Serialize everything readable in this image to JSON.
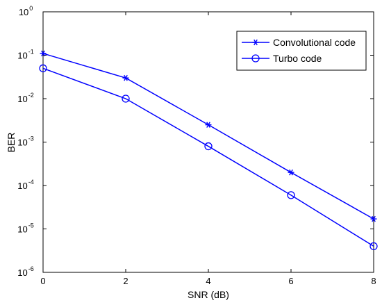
{
  "chart_data": {
    "type": "line",
    "xlabel": "SNR (dB)",
    "ylabel": "BER",
    "x_scale": "linear",
    "y_scale": "log",
    "xlim": [
      0,
      8
    ],
    "ylim": [
      1e-06,
      1
    ],
    "x_ticks": [
      "0",
      "2",
      "4",
      "6",
      "8"
    ],
    "y_ticks": [
      {
        "base": "10",
        "exp": "0"
      },
      {
        "base": "10",
        "exp": "-1"
      },
      {
        "base": "10",
        "exp": "-2"
      },
      {
        "base": "10",
        "exp": "-3"
      },
      {
        "base": "10",
        "exp": "-4"
      },
      {
        "base": "10",
        "exp": "-5"
      },
      {
        "base": "10",
        "exp": "-6"
      }
    ],
    "grid": false,
    "legend_position": "top-right",
    "series": [
      {
        "name": "Convolutional code",
        "marker": "asterisk",
        "color": "#0000ff",
        "x": [
          0,
          2,
          4,
          6,
          8
        ],
        "y": [
          0.11,
          0.03,
          0.0025,
          0.0002,
          1.7e-05
        ]
      },
      {
        "name": "Turbo code",
        "marker": "circle",
        "color": "#0000ff",
        "x": [
          0,
          2,
          4,
          6,
          8
        ],
        "y": [
          0.05,
          0.01,
          0.0008,
          6e-05,
          4e-06
        ]
      }
    ]
  }
}
